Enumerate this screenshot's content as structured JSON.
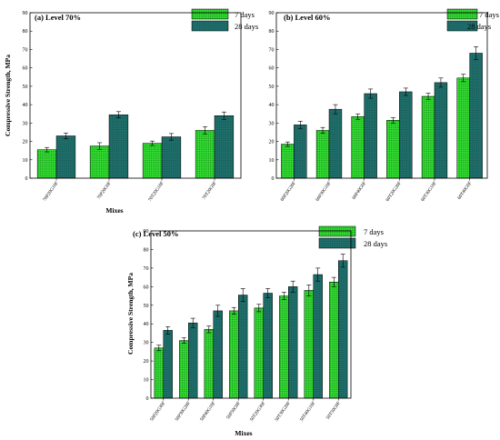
{
  "colors": {
    "seven_days": "#33dd33",
    "twenty_eight_days": "#1f6f6b",
    "hatch": "#0a6a0a",
    "axis": "#000000"
  },
  "chart_data": [
    {
      "type": "bar",
      "title": "(a) Level 70%",
      "xlabel": "Mixes",
      "ylabel": "Compressive Strength, MPa",
      "ylim": [
        0,
        90
      ],
      "yticks": [
        "0",
        "10",
        "20",
        "30",
        "40",
        "50",
        "60",
        "70",
        "80",
        "90"
      ],
      "legend_position": "top-right",
      "categories": [
        "70P20G10F",
        "70P20G0F",
        "70T20G10F",
        "70T20G0F"
      ],
      "series": [
        {
          "name": "7 days",
          "values": [
            15.5,
            17.5,
            19,
            26
          ],
          "errors": [
            1.2,
            1.8,
            1.2,
            2
          ]
        },
        {
          "name": "28 days",
          "values": [
            23,
            34.5,
            22.5,
            34
          ],
          "errors": [
            1.6,
            1.7,
            1.8,
            2
          ]
        }
      ]
    },
    {
      "type": "bar",
      "title": "(b) Level 60%",
      "xlabel": "",
      "ylabel": "",
      "ylim": [
        0,
        90
      ],
      "yticks": [
        "0",
        "10",
        "20",
        "30",
        "40",
        "50",
        "60",
        "70",
        "80",
        "90"
      ],
      "legend_position": "top-right",
      "categories": [
        "60P20G20F",
        "60P30G10F",
        "60P40G0F",
        "60T20G20F",
        "60T30G10F",
        "60T40G0F"
      ],
      "series": [
        {
          "name": "7 days",
          "values": [
            18.5,
            26,
            33.5,
            31.5,
            44.5,
            54.5
          ],
          "errors": [
            1.2,
            1.6,
            1.5,
            1.5,
            1.7,
            2
          ]
        },
        {
          "name": "28 days",
          "values": [
            29,
            37.5,
            46,
            47,
            52,
            68
          ],
          "errors": [
            2,
            2.5,
            2.5,
            2,
            2.5,
            3.5
          ]
        }
      ]
    },
    {
      "type": "bar",
      "title": "(c) Level 50%",
      "xlabel": "Mixes",
      "ylabel": "Compressive Strength, MPa",
      "ylim": [
        0,
        90
      ],
      "yticks": [
        "0",
        "10",
        "20",
        "30",
        "40",
        "50",
        "60",
        "70",
        "80",
        "90"
      ],
      "legend_position": "top-right",
      "categories": [
        "50P20G30F",
        "50P30G20F",
        "50P40G10F",
        "50P50G0F",
        "50T20G30F",
        "50T30G20F",
        "50T40G10F",
        "50T50G0F"
      ],
      "series": [
        {
          "name": "7 days",
          "values": [
            27,
            31,
            37,
            47,
            48.5,
            55,
            58,
            62.5
          ],
          "errors": [
            1.5,
            1.5,
            1.8,
            1.8,
            2,
            2,
            3,
            2.5
          ]
        },
        {
          "name": "28 days",
          "values": [
            36.5,
            40.5,
            47,
            55.5,
            56.5,
            60,
            66.5,
            74
          ],
          "errors": [
            2,
            2.5,
            3,
            3.5,
            2.5,
            3,
            3.5,
            3.5
          ]
        }
      ]
    }
  ]
}
